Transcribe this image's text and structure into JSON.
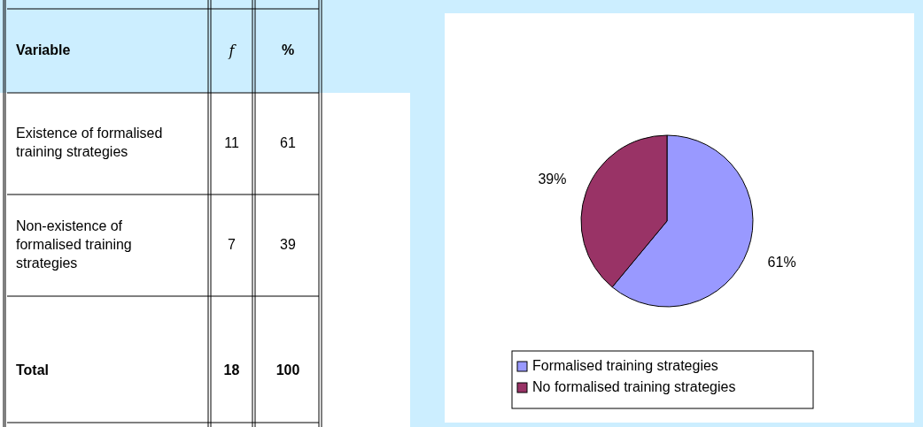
{
  "chart_data": [
    {
      "type": "other",
      "annotations": [
        "Variable"
      ],
      "categories": [
        "Existence of formalised training strategies",
        "Non-existence of formalised training strategies",
        "Total"
      ],
      "data_labels": true,
      "series": [
        {
          "name": "f",
          "values": [
            11,
            7,
            18
          ]
        },
        {
          "name": "%",
          "values": [
            61,
            39,
            100
          ]
        }
      ]
    },
    {
      "type": "pie",
      "categories": [
        "Formalised training strategies",
        "No formalised training strategies"
      ],
      "values": [
        61,
        39
      ],
      "value_labels": [
        "61%",
        "39%"
      ],
      "colors": [
        "#9999ff",
        "#993366"
      ],
      "legend": "bottom"
    }
  ]
}
